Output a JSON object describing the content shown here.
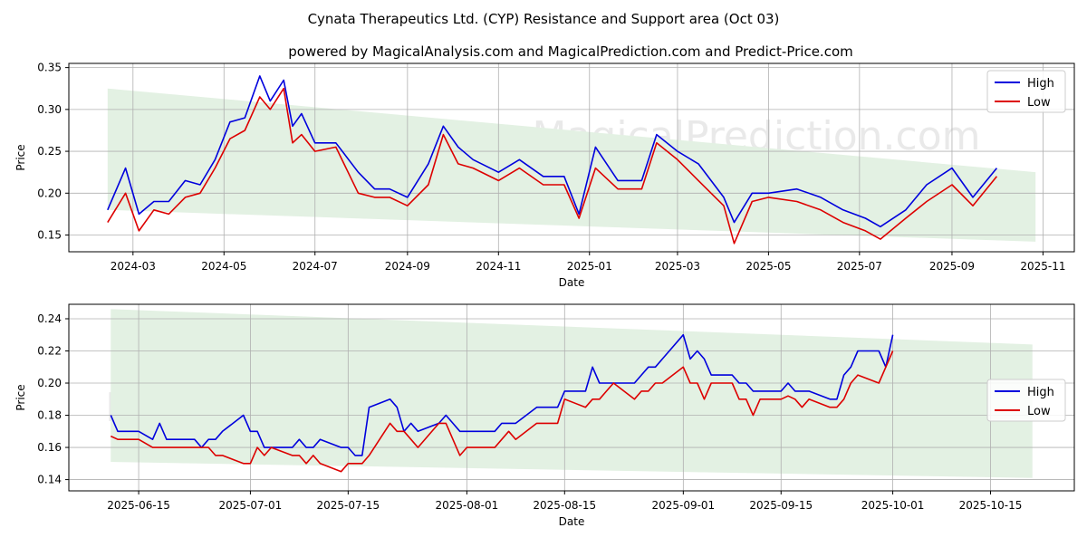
{
  "title": "Cynata Therapeutics Ltd. (CYP) Resistance and Support area (Oct 03)",
  "subtitle": "powered by MagicalAnalysis.com and MagicalPrediction.com and Predict-Price.com",
  "watermarks": [
    "MagicalAnalysis.com",
    "MagicalPrediction.com"
  ],
  "colors": {
    "high": "#0000dd",
    "low": "#dd0000",
    "band": "#e3f1e3",
    "grid": "#b0b0b0"
  },
  "chart_data": [
    {
      "type": "line",
      "xlabel": "Date",
      "ylabel": "Price",
      "ylim": [
        0.13,
        0.355
      ],
      "x_ticks": [
        "2024-03",
        "2024-05",
        "2024-07",
        "2024-09",
        "2024-11",
        "2025-01",
        "2025-03",
        "2025-05",
        "2025-07",
        "2025-09",
        "2025-11"
      ],
      "y_ticks": [
        "0.15",
        "0.20",
        "0.25",
        "0.30",
        "0.35"
      ],
      "legend": "top-right",
      "band": {
        "start": [
          "2024-02-13",
          0.18,
          0.325
        ],
        "end": [
          "2025-10-27",
          0.142,
          0.225
        ]
      },
      "x": [
        "2024-02-13",
        "2024-02-25",
        "2024-03-05",
        "2024-03-15",
        "2024-03-25",
        "2024-04-05",
        "2024-04-15",
        "2024-04-25",
        "2024-05-05",
        "2024-05-15",
        "2024-05-25",
        "2024-06-01",
        "2024-06-10",
        "2024-06-16",
        "2024-06-22",
        "2024-07-01",
        "2024-07-15",
        "2024-07-30",
        "2024-08-10",
        "2024-08-20",
        "2024-09-01",
        "2024-09-15",
        "2024-09-25",
        "2024-10-05",
        "2024-10-15",
        "2024-11-01",
        "2024-11-15",
        "2024-12-01",
        "2024-12-15",
        "2024-12-25",
        "2025-01-05",
        "2025-01-20",
        "2025-02-05",
        "2025-02-15",
        "2025-03-01",
        "2025-03-15",
        "2025-04-01",
        "2025-04-08",
        "2025-04-20",
        "2025-05-01",
        "2025-05-20",
        "2025-06-05",
        "2025-06-20",
        "2025-07-05",
        "2025-07-15",
        "2025-08-01",
        "2025-08-15",
        "2025-09-01",
        "2025-09-15",
        "2025-10-01"
      ],
      "series": [
        {
          "name": "High",
          "values": [
            0.18,
            0.23,
            0.175,
            0.19,
            0.19,
            0.215,
            0.21,
            0.24,
            0.285,
            0.29,
            0.34,
            0.31,
            0.335,
            0.28,
            0.295,
            0.26,
            0.26,
            0.225,
            0.205,
            0.205,
            0.195,
            0.235,
            0.28,
            0.255,
            0.24,
            0.225,
            0.24,
            0.22,
            0.22,
            0.175,
            0.255,
            0.215,
            0.215,
            0.27,
            0.25,
            0.235,
            0.195,
            0.165,
            0.2,
            0.2,
            0.205,
            0.195,
            0.18,
            0.17,
            0.16,
            0.18,
            0.21,
            0.23,
            0.195,
            0.23
          ]
        },
        {
          "name": "Low",
          "values": [
            0.165,
            0.2,
            0.155,
            0.18,
            0.175,
            0.195,
            0.2,
            0.23,
            0.265,
            0.275,
            0.315,
            0.3,
            0.325,
            0.26,
            0.27,
            0.25,
            0.255,
            0.2,
            0.195,
            0.195,
            0.185,
            0.21,
            0.27,
            0.235,
            0.23,
            0.215,
            0.23,
            0.21,
            0.21,
            0.17,
            0.23,
            0.205,
            0.205,
            0.26,
            0.24,
            0.215,
            0.185,
            0.14,
            0.19,
            0.195,
            0.19,
            0.18,
            0.165,
            0.155,
            0.145,
            0.17,
            0.19,
            0.21,
            0.185,
            0.22
          ]
        }
      ]
    },
    {
      "type": "line",
      "xlabel": "Date",
      "ylabel": "Price",
      "ylim": [
        0.133,
        0.249
      ],
      "x_ticks": [
        "2025-06-15",
        "2025-07-01",
        "2025-07-15",
        "2025-08-01",
        "2025-08-15",
        "2025-09-01",
        "2025-09-15",
        "2025-10-01",
        "2025-10-15"
      ],
      "y_ticks": [
        "0.14",
        "0.16",
        "0.18",
        "0.20",
        "0.22",
        "0.24"
      ],
      "legend": "center-right",
      "band": {
        "start": [
          "2025-06-11",
          0.151,
          0.246
        ],
        "end": [
          "2025-10-21",
          0.141,
          0.224
        ]
      },
      "x": [
        "2025-06-11",
        "2025-06-12",
        "2025-06-15",
        "2025-06-17",
        "2025-06-18",
        "2025-06-19",
        "2025-06-23",
        "2025-06-24",
        "2025-06-25",
        "2025-06-26",
        "2025-06-27",
        "2025-06-30",
        "2025-07-01",
        "2025-07-02",
        "2025-07-03",
        "2025-07-04",
        "2025-07-07",
        "2025-07-08",
        "2025-07-09",
        "2025-07-10",
        "2025-07-11",
        "2025-07-14",
        "2025-07-15",
        "2025-07-16",
        "2025-07-17",
        "2025-07-18",
        "2025-07-21",
        "2025-07-22",
        "2025-07-23",
        "2025-07-24",
        "2025-07-25",
        "2025-07-28",
        "2025-07-29",
        "2025-07-30",
        "2025-07-31",
        "2025-08-01",
        "2025-08-04",
        "2025-08-05",
        "2025-08-06",
        "2025-08-07",
        "2025-08-08",
        "2025-08-11",
        "2025-08-12",
        "2025-08-13",
        "2025-08-14",
        "2025-08-15",
        "2025-08-18",
        "2025-08-19",
        "2025-08-20",
        "2025-08-21",
        "2025-08-22",
        "2025-08-25",
        "2025-08-26",
        "2025-08-27",
        "2025-08-28",
        "2025-08-29",
        "2025-09-01",
        "2025-09-02",
        "2025-09-03",
        "2025-09-04",
        "2025-09-05",
        "2025-09-08",
        "2025-09-09",
        "2025-09-10",
        "2025-09-11",
        "2025-09-12",
        "2025-09-15",
        "2025-09-16",
        "2025-09-17",
        "2025-09-18",
        "2025-09-19",
        "2025-09-22",
        "2025-09-23",
        "2025-09-24",
        "2025-09-25",
        "2025-09-26",
        "2025-09-29",
        "2025-09-30",
        "2025-10-01"
      ],
      "series": [
        {
          "name": "High",
          "values": [
            0.18,
            0.17,
            0.17,
            0.165,
            0.175,
            0.165,
            0.165,
            0.16,
            0.165,
            0.165,
            0.17,
            0.18,
            0.17,
            0.17,
            0.16,
            0.16,
            0.16,
            0.165,
            0.16,
            0.16,
            0.165,
            0.16,
            0.16,
            0.155,
            0.155,
            0.185,
            0.19,
            0.185,
            0.17,
            0.175,
            0.17,
            0.175,
            0.18,
            0.175,
            0.17,
            0.17,
            0.17,
            0.17,
            0.175,
            0.175,
            0.175,
            0.185,
            0.185,
            0.185,
            0.185,
            0.195,
            0.195,
            0.21,
            0.2,
            0.2,
            0.2,
            0.2,
            0.205,
            0.21,
            0.21,
            0.215,
            0.23,
            0.215,
            0.22,
            0.215,
            0.205,
            0.205,
            0.2,
            0.2,
            0.195,
            0.195,
            0.195,
            0.2,
            0.195,
            0.195,
            0.195,
            0.19,
            0.19,
            0.205,
            0.21,
            0.22,
            0.22,
            0.21,
            0.23
          ]
        },
        {
          "name": "Low",
          "values": [
            0.167,
            0.165,
            0.165,
            0.16,
            0.16,
            0.16,
            0.16,
            0.16,
            0.16,
            0.155,
            0.155,
            0.15,
            0.15,
            0.16,
            0.155,
            0.16,
            0.155,
            0.155,
            0.15,
            0.155,
            0.15,
            0.145,
            0.15,
            0.15,
            0.15,
            0.155,
            0.175,
            0.17,
            0.17,
            0.165,
            0.16,
            0.175,
            0.175,
            0.165,
            0.155,
            0.16,
            0.16,
            0.16,
            0.165,
            0.17,
            0.165,
            0.175,
            0.175,
            0.175,
            0.175,
            0.19,
            0.185,
            0.19,
            0.19,
            0.195,
            0.2,
            0.19,
            0.195,
            0.195,
            0.2,
            0.2,
            0.21,
            0.2,
            0.2,
            0.19,
            0.2,
            0.2,
            0.19,
            0.19,
            0.18,
            0.19,
            0.19,
            0.192,
            0.19,
            0.185,
            0.19,
            0.185,
            0.185,
            0.19,
            0.2,
            0.205,
            0.2,
            0.21,
            0.22
          ]
        }
      ]
    }
  ]
}
